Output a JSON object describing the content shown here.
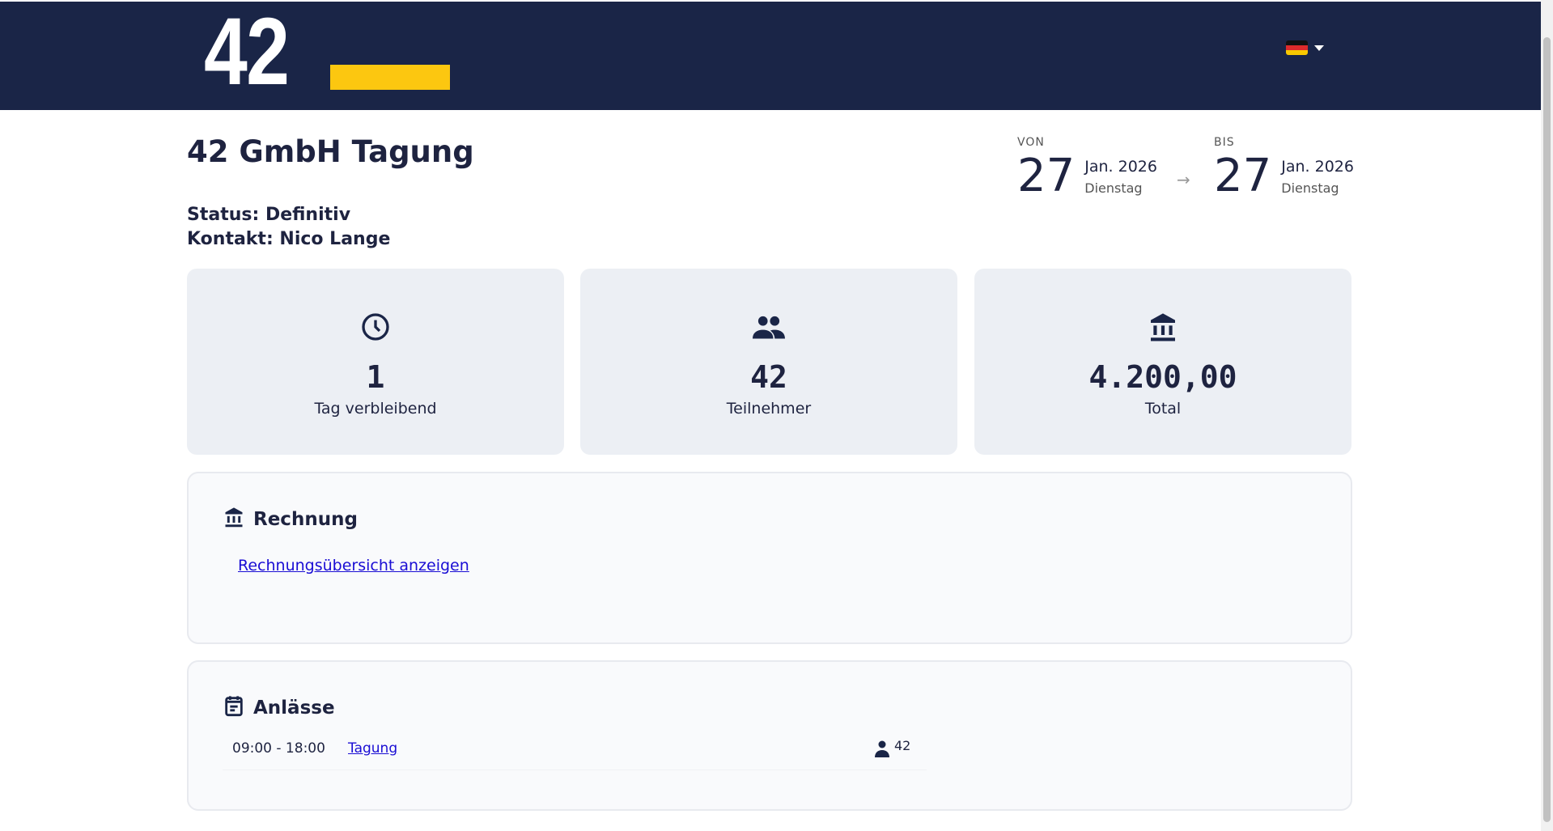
{
  "header": {
    "logo_text": "42",
    "brand_yellow": "#fcc710",
    "brand_navy": "#1a2547",
    "language": "de",
    "language_icon": "flag-germany-icon"
  },
  "event": {
    "title": "42 GmbH Tagung",
    "status": "Status: Definitiv",
    "contact": "Kontakt: Nico Lange"
  },
  "dates": {
    "from": {
      "label": "VON",
      "day": "27",
      "month_year": "Jan. 2026",
      "weekday": "Dienstag"
    },
    "to": {
      "label": "BIS",
      "day": "27",
      "month_year": "Jan. 2026",
      "weekday": "Dienstag"
    }
  },
  "stats": [
    {
      "icon": "clock-icon",
      "value": "1",
      "label": "Tag verbleibend"
    },
    {
      "icon": "people-icon",
      "value": "42",
      "label": "Teilnehmer"
    },
    {
      "icon": "bank-icon",
      "value": "4.200,00",
      "label": "Total"
    }
  ],
  "invoice": {
    "heading": "Rechnung",
    "link": "Rechnungsübersicht anzeigen"
  },
  "events": {
    "heading": "Anlässe",
    "items": [
      {
        "time": "09:00 - 18:00",
        "name": "Tagung",
        "participants": "42"
      }
    ]
  }
}
